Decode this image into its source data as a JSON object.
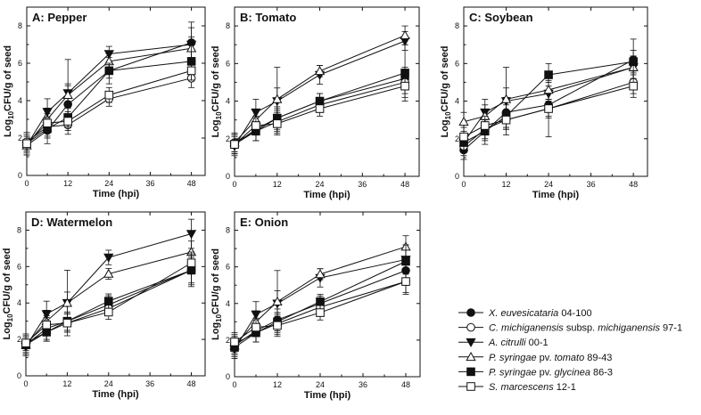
{
  "figure": {
    "colors": {
      "ink": "#111111",
      "background": "#ffffff"
    },
    "panels": [
      {
        "id": "A",
        "title": "A: Pepper",
        "ylabel_main": "Log",
        "ylabel_sub": "10",
        "ylabel_rest": "CFU/g of seed",
        "xlabel": "Time (hpi)",
        "xticks": [
          "0",
          "12",
          "24",
          "36",
          "48"
        ],
        "yticks": [
          "0",
          "2",
          "4",
          "6",
          "8"
        ]
      },
      {
        "id": "B",
        "title": "B: Tomato",
        "ylabel_main": "Log",
        "ylabel_sub": "10",
        "ylabel_rest": "CFU/g of seed",
        "xlabel": "Time (hpi)",
        "xticks": [
          "0",
          "12",
          "24",
          "36",
          "48"
        ],
        "yticks": [
          "0",
          "2",
          "4",
          "6",
          "8"
        ]
      },
      {
        "id": "C",
        "title": "C: Soybean",
        "ylabel_main": "Log",
        "ylabel_sub": "10",
        "ylabel_rest": "CFU/g of seed",
        "xlabel": "Time (hpi)",
        "xticks": [
          "0",
          "12",
          "24",
          "36",
          "48"
        ],
        "yticks": [
          "0",
          "2",
          "4",
          "6",
          "8"
        ]
      },
      {
        "id": "D",
        "title": "D: Watermelon",
        "ylabel_main": "Log",
        "ylabel_sub": "10",
        "ylabel_rest": "CFU/g of seed",
        "xlabel": "Time (hpi)",
        "xticks": [
          "0",
          "12",
          "24",
          "36",
          "48"
        ],
        "yticks": [
          "0",
          "2",
          "4",
          "6",
          "8"
        ]
      },
      {
        "id": "E",
        "title": "E: Onion",
        "ylabel_main": "Log",
        "ylabel_sub": "10",
        "ylabel_rest": "CFU/g of seed",
        "xlabel": "Time (hpi)",
        "xticks": [
          "0",
          "12",
          "24",
          "36",
          "48"
        ],
        "yticks": [
          "0",
          "2",
          "4",
          "6",
          "8"
        ]
      }
    ],
    "legend": [
      {
        "marker": "filled-circle",
        "italic": "X. euvesicataria",
        "rest": " 04-100"
      },
      {
        "marker": "open-circle",
        "italic": "C. michiganensis",
        "rest": " subsp. ",
        "italic2": "michiganensis",
        "rest2": " 97-1"
      },
      {
        "marker": "filled-triangle-down",
        "italic": "A. citrulli",
        "rest": " 00-1"
      },
      {
        "marker": "open-triangle-up",
        "italic": "P. syringae",
        "rest": " pv. ",
        "italic2": "tomato",
        "rest2": " 89-43"
      },
      {
        "marker": "filled-square",
        "italic": "P. syringae",
        "rest": " pv. ",
        "italic2": "glycinea",
        "rest2": " 86-3"
      },
      {
        "marker": "open-square",
        "italic": "S. marcescens",
        "rest": " 12-1"
      }
    ]
  },
  "chart_data": [
    {
      "type": "line",
      "title": "A: Pepper",
      "xlabel": "Time (hpi)",
      "ylabel": "Log10CFU/g of seed",
      "xlim": [
        0,
        52
      ],
      "ylim": [
        0,
        9
      ],
      "x": [
        0,
        6,
        12,
        24,
        48
      ],
      "series": [
        {
          "name": "X. euvesicataria 04-100",
          "marker": "filled-circle",
          "values": [
            1.6,
            2.4,
            3.8,
            5.6,
            7.1
          ],
          "errors": [
            0.5,
            0.7,
            1.0,
            0.7,
            0.8
          ]
        },
        {
          "name": "C. michiganensis subsp. michiganensis 97-1",
          "marker": "open-circle",
          "values": [
            1.8,
            2.6,
            2.7,
            4.1,
            5.2
          ],
          "errors": [
            0.5,
            0.5,
            0.5,
            0.4,
            0.5
          ]
        },
        {
          "name": "A. citrulli 00-1",
          "marker": "filled-triangle-down",
          "values": [
            1.6,
            3.4,
            4.4,
            6.5,
            7.0
          ],
          "errors": [
            0.5,
            0.7,
            1.8,
            0.4,
            1.2
          ]
        },
        {
          "name": "P. syringae pv. tomato 89-43",
          "marker": "open-triangle-up",
          "values": [
            1.6,
            3.0,
            4.3,
            6.1,
            6.8
          ],
          "errors": [
            0.5,
            0.6,
            0.6,
            0.4,
            0.6
          ]
        },
        {
          "name": "P. syringae pv. glycinea 86-3",
          "marker": "filled-square",
          "values": [
            1.7,
            2.5,
            3.1,
            5.6,
            6.1
          ],
          "errors": [
            0.5,
            0.5,
            0.5,
            0.4,
            1.0
          ]
        },
        {
          "name": "S. marcescens 12-1",
          "marker": "open-square",
          "values": [
            1.7,
            2.8,
            2.9,
            4.3,
            5.6
          ],
          "errors": [
            0.4,
            0.5,
            0.5,
            0.4,
            0.5
          ]
        }
      ]
    },
    {
      "type": "line",
      "title": "B: Tomato",
      "xlabel": "Time (hpi)",
      "ylabel": "Log10CFU/g of seed",
      "xlim": [
        0,
        52
      ],
      "ylim": [
        0,
        9
      ],
      "x": [
        0,
        6,
        12,
        24,
        48
      ],
      "series": [
        {
          "name": "X. euvesicataria 04-100",
          "marker": "filled-circle",
          "values": [
            1.7,
            2.5,
            3.1,
            4.0,
            5.2
          ],
          "errors": [
            0.5,
            0.6,
            0.6,
            0.4,
            0.6
          ]
        },
        {
          "name": "C. michiganensis subsp. michiganensis 97-1",
          "marker": "open-circle",
          "values": [
            1.8,
            2.4,
            2.9,
            3.8,
            5.0
          ],
          "errors": [
            0.5,
            0.5,
            0.5,
            0.4,
            0.6
          ]
        },
        {
          "name": "A. citrulli 00-1",
          "marker": "filled-triangle-down",
          "values": [
            1.6,
            3.4,
            4.0,
            5.4,
            7.2
          ],
          "errors": [
            0.5,
            0.7,
            1.8,
            0.5,
            0.5
          ]
        },
        {
          "name": "P. syringae pv. tomato 89-43",
          "marker": "open-triangle-up",
          "values": [
            1.8,
            3.0,
            4.1,
            5.6,
            7.5
          ],
          "errors": [
            0.5,
            0.5,
            0.6,
            0.3,
            0.5
          ]
        },
        {
          "name": "P. syringae pv. glycinea 86-3",
          "marker": "filled-square",
          "values": [
            1.7,
            2.4,
            3.1,
            4.0,
            5.5
          ],
          "errors": [
            0.5,
            0.5,
            0.5,
            0.4,
            1.5
          ]
        },
        {
          "name": "S. marcescens 12-1",
          "marker": "open-square",
          "values": [
            1.7,
            2.7,
            2.8,
            3.6,
            4.8
          ],
          "errors": [
            0.5,
            0.5,
            0.5,
            0.4,
            0.6
          ]
        }
      ]
    },
    {
      "type": "line",
      "title": "C: Soybean",
      "xlabel": "Time (hpi)",
      "ylabel": "Log10CFU/g of seed",
      "xlim": [
        0,
        52
      ],
      "ylim": [
        0,
        9
      ],
      "x": [
        0,
        6,
        12,
        24,
        48
      ],
      "series": [
        {
          "name": "X. euvesicataria 04-100",
          "marker": "filled-circle",
          "values": [
            1.4,
            2.4,
            3.4,
            3.8,
            6.2
          ],
          "errors": [
            0.5,
            0.7,
            0.8,
            1.7,
            1.1
          ]
        },
        {
          "name": "C. michiganensis subsp. michiganensis 97-1",
          "marker": "open-circle",
          "values": [
            1.6,
            2.5,
            3.0,
            3.6,
            5.0
          ],
          "errors": [
            0.5,
            0.5,
            0.5,
            0.5,
            0.6
          ]
        },
        {
          "name": "A. citrulli 00-1",
          "marker": "filled-triangle-down",
          "values": [
            1.8,
            3.4,
            4.0,
            4.4,
            5.8
          ],
          "errors": [
            0.5,
            0.7,
            1.8,
            0.6,
            0.6
          ]
        },
        {
          "name": "P. syringae pv. tomato 89-43",
          "marker": "open-triangle-up",
          "values": [
            2.9,
            3.2,
            4.1,
            4.6,
            5.8
          ],
          "errors": [
            0.5,
            0.6,
            0.6,
            0.5,
            0.6
          ]
        },
        {
          "name": "P. syringae pv. glycinea 86-3",
          "marker": "filled-square",
          "values": [
            1.8,
            2.4,
            3.2,
            5.4,
            6.1
          ],
          "errors": [
            0.5,
            0.5,
            0.6,
            0.6,
            0.6
          ]
        },
        {
          "name": "S. marcescens 12-1",
          "marker": "open-square",
          "values": [
            2.1,
            2.7,
            3.0,
            3.6,
            4.8
          ],
          "errors": [
            0.5,
            0.5,
            0.5,
            0.4,
            0.6
          ]
        }
      ]
    },
    {
      "type": "line",
      "title": "D: Watermelon",
      "xlabel": "Time (hpi)",
      "ylabel": "Log10CFU/g of seed",
      "xlim": [
        0,
        52
      ],
      "ylim": [
        0,
        9
      ],
      "x": [
        0,
        6,
        12,
        24,
        48
      ],
      "series": [
        {
          "name": "X. euvesicataria 04-100",
          "marker": "filled-circle",
          "values": [
            1.7,
            2.6,
            3.0,
            3.9,
            5.8
          ],
          "errors": [
            0.5,
            0.6,
            0.5,
            0.5,
            0.7
          ]
        },
        {
          "name": "C. michiganensis subsp. michiganensis 97-1",
          "marker": "open-circle",
          "values": [
            1.8,
            2.4,
            2.9,
            3.7,
            5.8
          ],
          "errors": [
            0.5,
            0.5,
            0.5,
            0.4,
            0.8
          ]
        },
        {
          "name": "A. citrulli 00-1",
          "marker": "filled-triangle-down",
          "values": [
            1.6,
            3.4,
            4.0,
            6.5,
            7.8
          ],
          "errors": [
            0.5,
            0.7,
            1.8,
            0.4,
            0.8
          ]
        },
        {
          "name": "P. syringae pv. tomato 89-43",
          "marker": "open-triangle-up",
          "values": [
            1.7,
            3.0,
            4.0,
            5.6,
            6.8
          ],
          "errors": [
            0.5,
            0.6,
            0.6,
            0.3,
            0.6
          ]
        },
        {
          "name": "P. syringae pv. glycinea 86-3",
          "marker": "filled-square",
          "values": [
            1.7,
            2.4,
            3.0,
            4.1,
            5.8
          ],
          "errors": [
            0.5,
            0.5,
            0.5,
            0.4,
            0.9
          ]
        },
        {
          "name": "S. marcescens 12-1",
          "marker": "open-square",
          "values": [
            1.8,
            2.8,
            2.9,
            3.5,
            6.2
          ],
          "errors": [
            0.4,
            0.5,
            0.5,
            0.4,
            0.6
          ]
        }
      ]
    },
    {
      "type": "line",
      "title": "E: Onion",
      "xlabel": "Time (hpi)",
      "ylabel": "Log10CFU/g of seed",
      "xlim": [
        0,
        52
      ],
      "ylim": [
        0,
        9
      ],
      "x": [
        0,
        6,
        12,
        24,
        48
      ],
      "series": [
        {
          "name": "X. euvesicataria 04-100",
          "marker": "filled-circle",
          "values": [
            1.7,
            2.5,
            3.1,
            4.0,
            5.8
          ],
          "errors": [
            0.5,
            0.6,
            0.6,
            0.4,
            0.7
          ]
        },
        {
          "name": "C. michiganensis subsp. michiganensis 97-1",
          "marker": "open-circle",
          "values": [
            1.8,
            2.4,
            2.9,
            3.8,
            5.2
          ],
          "errors": [
            0.5,
            0.5,
            0.5,
            0.4,
            0.7
          ]
        },
        {
          "name": "A. citrulli 00-1",
          "marker": "filled-triangle-down",
          "values": [
            1.5,
            3.4,
            4.0,
            5.4,
            6.4
          ],
          "errors": [
            0.5,
            0.7,
            1.8,
            0.5,
            0.8
          ]
        },
        {
          "name": "P. syringae pv. tomato 89-43",
          "marker": "open-triangle-up",
          "values": [
            1.7,
            3.0,
            4.1,
            5.6,
            7.1
          ],
          "errors": [
            0.5,
            0.6,
            0.6,
            0.3,
            0.6
          ]
        },
        {
          "name": "P. syringae pv. glycinea 86-3",
          "marker": "filled-square",
          "values": [
            1.6,
            2.4,
            3.0,
            4.1,
            6.3
          ],
          "errors": [
            0.5,
            0.5,
            0.5,
            0.4,
            0.9
          ]
        },
        {
          "name": "S. marcescens 12-1",
          "marker": "open-square",
          "values": [
            1.9,
            2.7,
            2.8,
            3.5,
            5.2
          ],
          "errors": [
            0.5,
            0.5,
            0.5,
            0.4,
            0.6
          ]
        }
      ]
    }
  ]
}
